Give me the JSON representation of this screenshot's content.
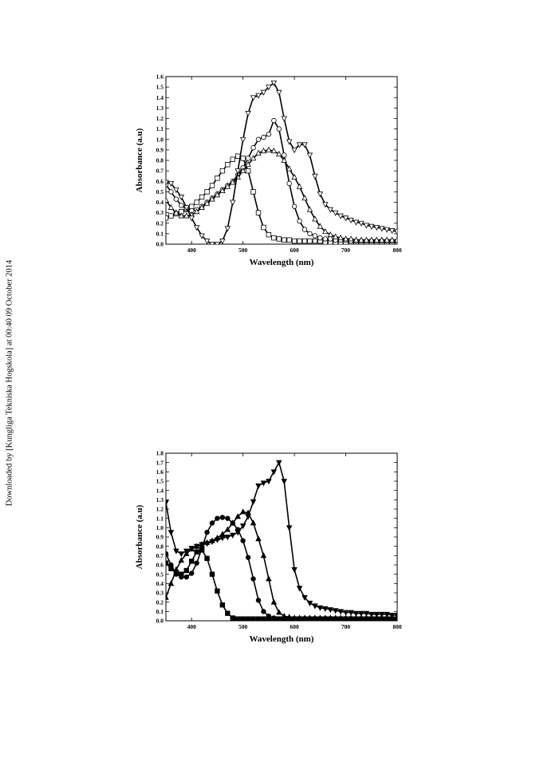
{
  "watermark": "Downloaded by [Kungliga Tekniska Hogskola] at 00:40 09 October 2014",
  "chart_data": [
    {
      "type": "line",
      "title": "",
      "xlabel": "Wavelength (nm)",
      "ylabel": "Absorbance (a.u)",
      "xlim": [
        350,
        800
      ],
      "ylim": [
        0,
        1.6
      ],
      "xticks": [
        400,
        500,
        600,
        700,
        800
      ],
      "yticks": [
        0.0,
        0.1,
        0.2,
        0.3,
        0.4,
        0.5,
        0.6,
        0.7,
        0.8,
        0.9,
        1.0,
        1.1,
        1.2,
        1.3,
        1.4,
        1.5,
        1.6
      ],
      "grid": false,
      "series": [
        {
          "marker": "square-open",
          "x": [
            350,
            360,
            370,
            380,
            390,
            400,
            410,
            420,
            430,
            440,
            450,
            460,
            470,
            480,
            490,
            500,
            510,
            520,
            530,
            540,
            550,
            560,
            570,
            580,
            590,
            600,
            610,
            620,
            630,
            640,
            650,
            660,
            670,
            680,
            690,
            700,
            710,
            720,
            730,
            740,
            750,
            760,
            770,
            780,
            790,
            800
          ],
          "values": [
            0.25,
            0.27,
            0.29,
            0.31,
            0.33,
            0.36,
            0.4,
            0.45,
            0.5,
            0.56,
            0.63,
            0.7,
            0.76,
            0.81,
            0.84,
            0.82,
            0.7,
            0.5,
            0.3,
            0.16,
            0.09,
            0.06,
            0.05,
            0.04,
            0.04,
            0.03,
            0.03,
            0.03,
            0.03,
            0.03,
            0.03,
            0.02,
            0.02,
            0.02,
            0.02,
            0.02,
            0.02,
            0.02,
            0.02,
            0.02,
            0.02,
            0.02,
            0.02,
            0.02,
            0.02,
            0.02
          ]
        },
        {
          "marker": "circle-open",
          "x": [
            350,
            360,
            370,
            380,
            390,
            400,
            410,
            420,
            430,
            440,
            450,
            460,
            470,
            480,
            490,
            500,
            510,
            520,
            530,
            540,
            550,
            560,
            570,
            580,
            590,
            600,
            610,
            620,
            630,
            640,
            650,
            660,
            670,
            680,
            690,
            700,
            710,
            720,
            730,
            740,
            750,
            760,
            770,
            780,
            790,
            800
          ],
          "values": [
            0.57,
            0.5,
            0.43,
            0.37,
            0.34,
            0.32,
            0.33,
            0.36,
            0.4,
            0.44,
            0.48,
            0.52,
            0.56,
            0.6,
            0.66,
            0.73,
            0.82,
            0.92,
            1.0,
            1.02,
            1.05,
            1.18,
            1.1,
            0.85,
            0.58,
            0.36,
            0.22,
            0.14,
            0.1,
            0.08,
            0.06,
            0.05,
            0.05,
            0.04,
            0.04,
            0.04,
            0.03,
            0.03,
            0.03,
            0.03,
            0.03,
            0.03,
            0.03,
            0.03,
            0.03,
            0.03
          ]
        },
        {
          "marker": "triangle-up-open",
          "x": [
            350,
            360,
            370,
            380,
            390,
            400,
            410,
            420,
            430,
            440,
            450,
            460,
            470,
            480,
            490,
            500,
            510,
            520,
            530,
            540,
            550,
            560,
            570,
            580,
            590,
            600,
            610,
            620,
            630,
            640,
            650,
            660,
            670,
            680,
            690,
            700,
            710,
            720,
            730,
            740,
            750,
            760,
            770,
            780,
            790,
            800
          ],
          "values": [
            0.42,
            0.35,
            0.3,
            0.27,
            0.27,
            0.28,
            0.31,
            0.35,
            0.39,
            0.43,
            0.47,
            0.51,
            0.55,
            0.59,
            0.64,
            0.7,
            0.76,
            0.82,
            0.87,
            0.89,
            0.9,
            0.89,
            0.86,
            0.8,
            0.72,
            0.64,
            0.55,
            0.44,
            0.33,
            0.24,
            0.17,
            0.12,
            0.09,
            0.07,
            0.06,
            0.05,
            0.05,
            0.04,
            0.04,
            0.04,
            0.04,
            0.04,
            0.04,
            0.04,
            0.04,
            0.04
          ]
        },
        {
          "marker": "triangle-down-open",
          "x": [
            350,
            360,
            370,
            380,
            390,
            400,
            410,
            420,
            430,
            440,
            450,
            460,
            470,
            480,
            490,
            500,
            510,
            520,
            530,
            540,
            550,
            560,
            570,
            580,
            590,
            600,
            610,
            620,
            630,
            640,
            650,
            660,
            670,
            680,
            690,
            700,
            710,
            720,
            730,
            740,
            750,
            760,
            770,
            780,
            790,
            800
          ],
          "values": [
            0.59,
            0.58,
            0.52,
            0.45,
            0.35,
            0.25,
            0.16,
            0.08,
            0.03,
            0.0,
            0.0,
            0.03,
            0.15,
            0.4,
            0.7,
            1.0,
            1.25,
            1.4,
            1.42,
            1.45,
            1.5,
            1.54,
            1.45,
            1.2,
            0.98,
            0.9,
            0.95,
            0.95,
            0.85,
            0.65,
            0.48,
            0.38,
            0.33,
            0.3,
            0.27,
            0.25,
            0.23,
            0.21,
            0.2,
            0.18,
            0.17,
            0.16,
            0.15,
            0.14,
            0.13,
            0.12
          ]
        }
      ]
    },
    {
      "type": "line",
      "title": "",
      "xlabel": "Wavelength (nm)",
      "ylabel": "Absorbance (a.u)",
      "xlim": [
        350,
        800
      ],
      "ylim": [
        0,
        1.8
      ],
      "xticks": [
        400,
        500,
        600,
        700,
        800
      ],
      "yticks": [
        0.0,
        0.1,
        0.2,
        0.3,
        0.4,
        0.5,
        0.6,
        0.7,
        0.8,
        0.9,
        1.0,
        1.1,
        1.2,
        1.3,
        1.4,
        1.5,
        1.6,
        1.7,
        1.8
      ],
      "grid": false,
      "series": [
        {
          "marker": "square-filled",
          "x": [
            350,
            360,
            370,
            380,
            390,
            400,
            410,
            420,
            430,
            440,
            450,
            460,
            470,
            480,
            490,
            500,
            510,
            520,
            530,
            540,
            550,
            560,
            570,
            580,
            590,
            600,
            610,
            620,
            630,
            640,
            650,
            660,
            670,
            680,
            690,
            700,
            710,
            720,
            730,
            740,
            750,
            760,
            770,
            780,
            790,
            800
          ],
          "values": [
            0.62,
            0.56,
            0.52,
            0.5,
            0.54,
            0.64,
            0.74,
            0.76,
            0.67,
            0.5,
            0.32,
            0.17,
            0.08,
            0.03,
            0.02,
            0.02,
            0.02,
            0.02,
            0.02,
            0.02,
            0.02,
            0.02,
            0.02,
            0.02,
            0.02,
            0.02,
            0.02,
            0.02,
            0.02,
            0.02,
            0.02,
            0.02,
            0.02,
            0.02,
            0.02,
            0.02,
            0.02,
            0.02,
            0.02,
            0.02,
            0.02,
            0.02,
            0.02,
            0.02,
            0.02,
            0.02
          ]
        },
        {
          "marker": "circle-filled",
          "x": [
            350,
            360,
            370,
            380,
            390,
            400,
            410,
            420,
            430,
            440,
            450,
            460,
            470,
            480,
            490,
            500,
            510,
            520,
            530,
            540,
            550,
            560,
            570,
            580,
            590,
            600,
            610,
            620,
            630,
            640,
            650,
            660,
            670,
            680,
            690,
            700,
            710,
            720,
            730,
            740,
            750,
            760,
            770,
            780,
            790,
            800
          ],
          "values": [
            0.72,
            0.6,
            0.5,
            0.47,
            0.47,
            0.51,
            0.62,
            0.78,
            0.95,
            1.05,
            1.1,
            1.11,
            1.1,
            1.05,
            0.98,
            0.86,
            0.68,
            0.45,
            0.22,
            0.1,
            0.05,
            0.03,
            0.02,
            0.02,
            0.02,
            0.02,
            0.02,
            0.02,
            0.02,
            0.02,
            0.02,
            0.02,
            0.02,
            0.02,
            0.02,
            0.02,
            0.02,
            0.02,
            0.02,
            0.02,
            0.02,
            0.02,
            0.02,
            0.02,
            0.02,
            0.02
          ]
        },
        {
          "marker": "triangle-up-filled",
          "x": [
            350,
            360,
            370,
            380,
            390,
            400,
            410,
            420,
            430,
            440,
            450,
            460,
            470,
            480,
            490,
            500,
            510,
            520,
            530,
            540,
            550,
            560,
            570,
            580,
            590,
            600,
            610,
            620,
            630,
            640,
            650,
            660,
            670,
            680,
            690,
            700,
            710,
            720,
            730,
            740,
            750,
            760,
            770,
            780,
            790,
            800
          ],
          "values": [
            0.25,
            0.4,
            0.55,
            0.65,
            0.72,
            0.77,
            0.8,
            0.82,
            0.84,
            0.86,
            0.89,
            0.93,
            0.98,
            1.05,
            1.12,
            1.17,
            1.16,
            1.05,
            0.88,
            0.7,
            0.45,
            0.2,
            0.09,
            0.05,
            0.04,
            0.03,
            0.03,
            0.03,
            0.03,
            0.03,
            0.03,
            0.03,
            0.03,
            0.03,
            0.03,
            0.03,
            0.03,
            0.03,
            0.03,
            0.03,
            0.03,
            0.03,
            0.03,
            0.03,
            0.03,
            0.03
          ]
        },
        {
          "marker": "triangle-down-filled",
          "x": [
            350,
            360,
            370,
            380,
            390,
            400,
            410,
            420,
            430,
            440,
            450,
            460,
            470,
            480,
            490,
            500,
            510,
            520,
            530,
            540,
            550,
            560,
            570,
            580,
            590,
            600,
            610,
            620,
            630,
            640,
            650,
            660,
            670,
            680,
            690,
            700,
            710,
            720,
            730,
            740,
            750,
            760,
            770,
            780,
            790,
            800
          ],
          "values": [
            1.27,
            0.95,
            0.75,
            0.72,
            0.75,
            0.78,
            0.8,
            0.82,
            0.83,
            0.85,
            0.87,
            0.89,
            0.9,
            0.92,
            0.95,
            1.02,
            1.12,
            1.28,
            1.45,
            1.48,
            1.5,
            1.6,
            1.7,
            1.5,
            1.0,
            0.55,
            0.35,
            0.25,
            0.19,
            0.16,
            0.14,
            0.13,
            0.12,
            0.11,
            0.1,
            0.09,
            0.09,
            0.08,
            0.08,
            0.08,
            0.07,
            0.07,
            0.07,
            0.07,
            0.06,
            0.06
          ]
        }
      ]
    }
  ]
}
